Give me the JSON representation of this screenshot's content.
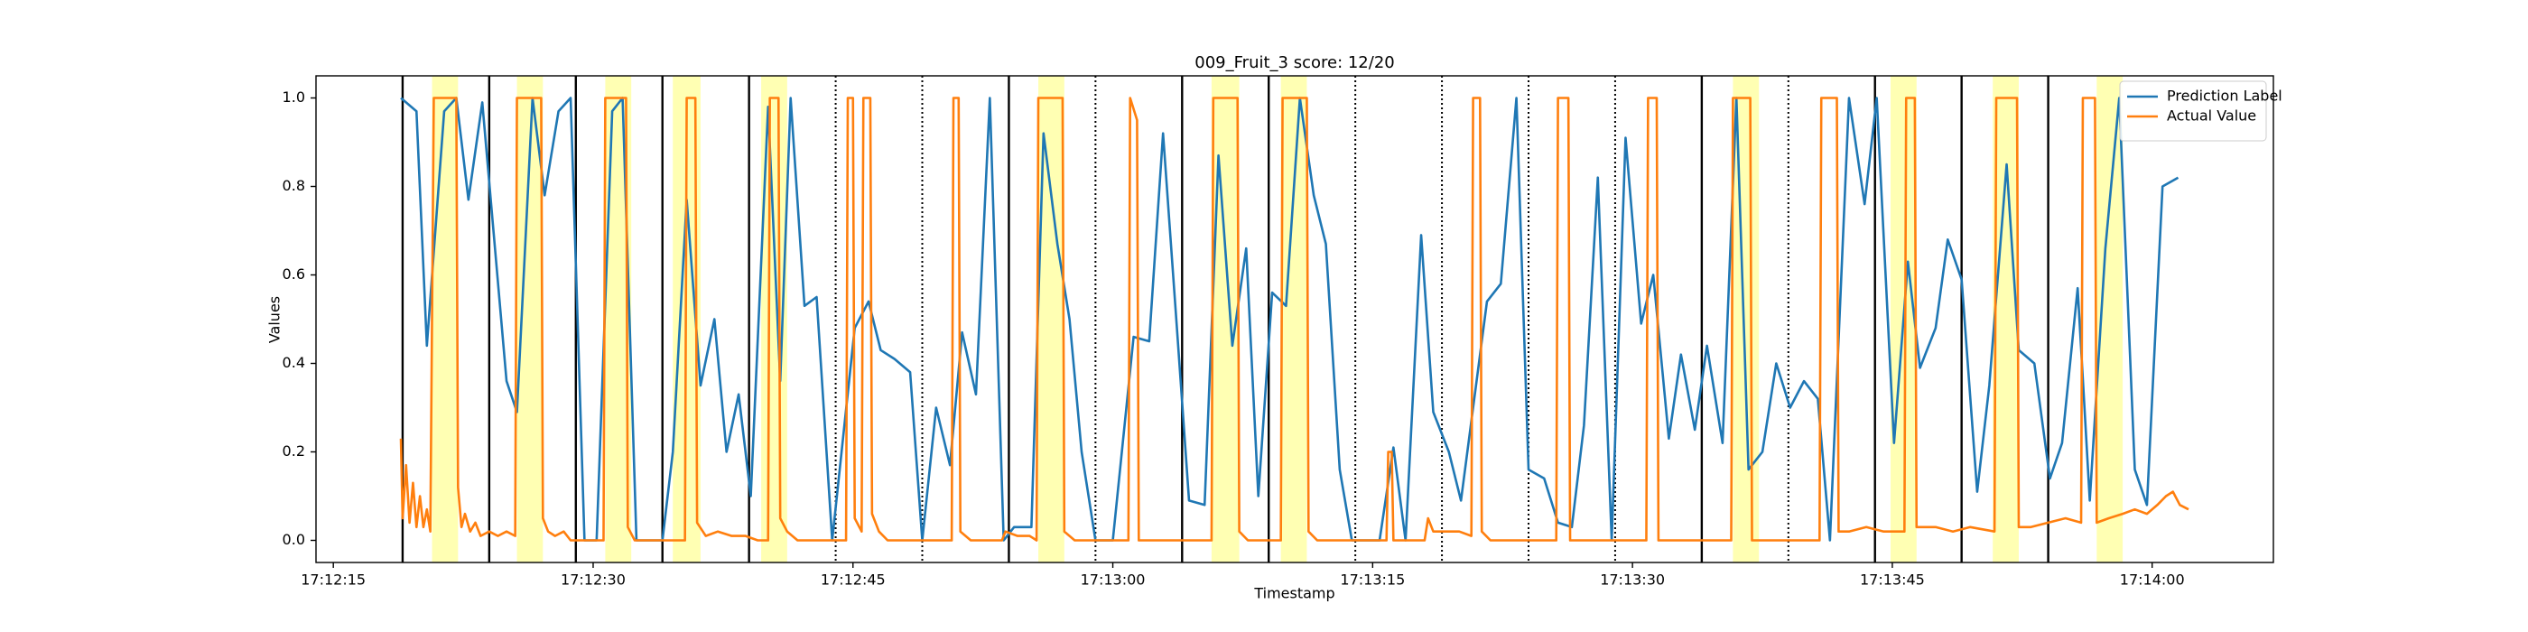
{
  "chart_data": {
    "type": "line",
    "title": "009_Fruit_3 score: 12/20",
    "xlabel": "Timestamp",
    "ylabel": "Values",
    "xlim": [
      61934,
      62047
    ],
    "ylim": [
      -0.05,
      1.05
    ],
    "xticks": [
      {
        "value": 61935,
        "label": "17:12:15"
      },
      {
        "value": 61950,
        "label": "17:12:30"
      },
      {
        "value": 61965,
        "label": "17:12:45"
      },
      {
        "value": 61980,
        "label": "17:13:00"
      },
      {
        "value": 61995,
        "label": "17:13:15"
      },
      {
        "value": 62010,
        "label": "17:13:30"
      },
      {
        "value": 62025,
        "label": "17:13:45"
      },
      {
        "value": 62040,
        "label": "17:14:00"
      }
    ],
    "yticks": [
      {
        "value": 0,
        "label": "0.0"
      },
      0.2,
      0.4,
      0.6,
      0.8,
      {
        "value": 1,
        "label": "1.0"
      }
    ],
    "legend": "upper right",
    "highlight_color": "#ffff99",
    "boundary_color": "#000000",
    "highlights": [
      [
        61940.7,
        61942.2
      ],
      [
        61945.6,
        61947.1
      ],
      [
        61950.7,
        61952.2
      ],
      [
        61954.6,
        61956.2
      ],
      [
        61959.7,
        61961.2
      ],
      [
        61975.7,
        61977.2
      ],
      [
        61985.7,
        61987.3
      ],
      [
        61989.7,
        61991.2
      ],
      [
        62015.8,
        62017.3
      ],
      [
        62024.9,
        62026.4
      ],
      [
        62030.8,
        62032.3
      ],
      [
        62036.8,
        62038.3
      ]
    ],
    "boundaries": [
      {
        "x": 61939,
        "correct": true
      },
      {
        "x": 61944,
        "correct": true
      },
      {
        "x": 61949,
        "correct": true
      },
      {
        "x": 61954,
        "correct": true
      },
      {
        "x": 61959,
        "correct": true
      },
      {
        "x": 61964,
        "correct": false
      },
      {
        "x": 61969,
        "correct": false
      },
      {
        "x": 61974,
        "correct": true
      },
      {
        "x": 61979,
        "correct": false
      },
      {
        "x": 61984,
        "correct": true
      },
      {
        "x": 61989,
        "correct": true
      },
      {
        "x": 61994,
        "correct": false
      },
      {
        "x": 61999,
        "correct": false
      },
      {
        "x": 62004,
        "correct": false
      },
      {
        "x": 62009,
        "correct": false
      },
      {
        "x": 62014,
        "correct": true
      },
      {
        "x": 62019,
        "correct": false
      },
      {
        "x": 62024,
        "correct": true
      },
      {
        "x": 62029,
        "correct": true
      },
      {
        "x": 62034,
        "correct": true
      }
    ],
    "series": [
      {
        "name": "Prediction Label",
        "color": "#1f77b4",
        "x": [
          61938.9,
          61939.8,
          61940.4,
          61941.4,
          61942.1,
          61942.8,
          61943.6,
          61945.0,
          61945.6,
          61946.5,
          61947.2,
          61948.0,
          61948.7,
          61949.5,
          61950.2,
          61951.1,
          61951.7,
          61952.5,
          61953.2,
          61954.0,
          61954.6,
          61955.4,
          61956.2,
          61957.0,
          61957.7,
          61958.4,
          61959.1,
          61960.1,
          61960.8,
          61961.4,
          61962.2,
          61962.9,
          61963.8,
          61965.1,
          61965.9,
          61966.6,
          61967.4,
          61968.3,
          61969.0,
          61969.8,
          61970.6,
          61971.3,
          61972.1,
          61972.9,
          61973.7,
          61974.3,
          61975.3,
          61976.0,
          61976.8,
          61977.5,
          61978.2,
          61979.0,
          61980.0,
          61981.2,
          61982.1,
          61982.9,
          61983.7,
          61984.4,
          61985.3,
          61986.1,
          61986.9,
          61987.7,
          61988.4,
          61989.2,
          61990.0,
          61990.8,
          61991.6,
          61992.3,
          61993.1,
          61993.8,
          61994.7,
          61995.4,
          61996.2,
          61996.9,
          61997.8,
          61998.5,
          61999.4,
          62000.1,
          62000.8,
          62001.6,
          62002.4,
          62003.3,
          62004.0,
          62004.9,
          62005.7,
          62006.5,
          62007.2,
          62008.0,
          62008.8,
          62009.6,
          62010.5,
          62011.2,
          62012.1,
          62012.8,
          62013.6,
          62014.3,
          62015.2,
          62016.0,
          62016.7,
          62017.5,
          62018.3,
          62019.1,
          62019.9,
          62020.7,
          62021.4,
          62022.5,
          62023.4,
          62024.1,
          62025.1,
          62025.9,
          62026.6,
          62027.5,
          62028.2,
          62029.0,
          62029.9,
          62030.6,
          62031.6,
          62032.3,
          62033.2,
          62034.1,
          62034.8,
          62035.7,
          62036.4,
          62037.3,
          62038.1,
          62039.0,
          62039.7,
          62040.6,
          62041.5
        ],
        "values": [
          1.0,
          0.97,
          0.44,
          0.97,
          1.0,
          0.77,
          0.99,
          0.36,
          0.29,
          1.0,
          0.78,
          0.97,
          1.0,
          0.0,
          0.0,
          0.97,
          1.0,
          0.0,
          0.0,
          0.0,
          0.2,
          0.77,
          0.35,
          0.5,
          0.2,
          0.33,
          0.1,
          0.98,
          0.36,
          1.0,
          0.53,
          0.55,
          0.0,
          0.48,
          0.54,
          0.43,
          0.41,
          0.38,
          0.0,
          0.3,
          0.17,
          0.47,
          0.33,
          1.0,
          0.0,
          0.03,
          0.03,
          0.92,
          0.67,
          0.5,
          0.2,
          0.0,
          0.0,
          0.46,
          0.45,
          0.92,
          0.48,
          0.09,
          0.08,
          0.87,
          0.44,
          0.66,
          0.1,
          0.56,
          0.53,
          1.0,
          0.78,
          0.67,
          0.16,
          0.0,
          0.0,
          0.0,
          0.21,
          0.0,
          0.69,
          0.29,
          0.2,
          0.09,
          0.3,
          0.54,
          0.58,
          1.0,
          0.16,
          0.14,
          0.04,
          0.03,
          0.26,
          0.82,
          0.0,
          0.91,
          0.49,
          0.6,
          0.23,
          0.42,
          0.25,
          0.44,
          0.22,
          1.0,
          0.16,
          0.2,
          0.4,
          0.3,
          0.36,
          0.32,
          0.0,
          1.0,
          0.76,
          1.0,
          0.22,
          0.63,
          0.39,
          0.48,
          0.68,
          0.59,
          0.11,
          0.35,
          0.85,
          0.43,
          0.4,
          0.14,
          0.22,
          0.57,
          0.09,
          0.66,
          1.0,
          0.16,
          0.08,
          0.8,
          0.82
        ]
      },
      {
        "name": "Actual Value",
        "color": "#ff7f0e",
        "x": [
          61938.9,
          61939.0,
          61939.2,
          61939.4,
          61939.6,
          61939.8,
          61940.0,
          61940.2,
          61940.4,
          61940.6,
          61940.8,
          61942.1,
          61942.2,
          61942.4,
          61942.6,
          61942.9,
          61943.2,
          61943.5,
          61944.0,
          61944.5,
          61945.0,
          61945.5,
          61945.6,
          61947.0,
          61947.1,
          61947.4,
          61947.8,
          61948.3,
          61948.7,
          61950.6,
          61950.7,
          61951.9,
          61952.0,
          61952.4,
          61955.3,
          61955.4,
          61955.9,
          61956.0,
          61956.5,
          61957.2,
          61958.0,
          61958.8,
          61959.5,
          61960.1,
          61960.2,
          61960.7,
          61960.8,
          61961.2,
          61961.8,
          61964.6,
          61964.7,
          61965.0,
          61965.1,
          61965.5,
          61965.6,
          61966.0,
          61966.1,
          61966.5,
          61967.0,
          61970.7,
          61970.8,
          61971.1,
          61971.2,
          61971.8,
          61973.6,
          61973.8,
          61974.5,
          61975.2,
          61975.6,
          61975.7,
          61977.1,
          61977.2,
          61977.8,
          61980.9,
          61981.0,
          61981.4,
          61981.5,
          61985.7,
          61985.8,
          61987.2,
          61987.3,
          61987.8,
          61989.7,
          61989.8,
          61991.2,
          61991.3,
          61991.8,
          61995.8,
          61995.9,
          61996.1,
          61996.2,
          61998.0,
          61998.2,
          61998.5,
          61999.0,
          62000.0,
          62000.7,
          62000.8,
          62001.2,
          62001.3,
          62001.8,
          62005.6,
          62005.7,
          62006.3,
          62006.4,
          62010.8,
          62010.9,
          62011.4,
          62011.5,
          62015.7,
          62015.8,
          62016.8,
          62016.9,
          62020.8,
          62020.9,
          62021.8,
          62021.9,
          62022.5,
          62023.5,
          62024.5,
          62025.7,
          62025.8,
          62026.3,
          62026.4,
          62027.5,
          62028.5,
          62029.5,
          62030.9,
          62031.0,
          62032.2,
          62032.3,
          62033.0,
          62034.0,
          62035.0,
          62035.9,
          62036.0,
          62036.7,
          62036.8,
          62037.5,
          62038.3,
          62039.0,
          62039.7,
          62040.3,
          62040.8,
          62041.2,
          62041.6,
          62042.1
        ],
        "values": [
          0.23,
          0.05,
          0.17,
          0.04,
          0.13,
          0.03,
          0.1,
          0.03,
          0.07,
          0.02,
          1,
          1,
          0.12,
          0.03,
          0.06,
          0.02,
          0.04,
          0.01,
          0.02,
          0.01,
          0.02,
          0.01,
          1,
          1,
          0.05,
          0.02,
          0.01,
          0.02,
          0.0,
          0.0,
          1,
          1,
          0.03,
          0.0,
          0.0,
          1,
          1,
          0.04,
          0.01,
          0.02,
          0.01,
          0.01,
          0.0,
          0.0,
          1,
          1,
          0.05,
          0.02,
          0.0,
          0.0,
          1,
          1,
          0.05,
          0.02,
          1,
          1,
          0.06,
          0.02,
          0.0,
          0.0,
          1,
          1,
          0.02,
          0.0,
          0.0,
          0.02,
          0.01,
          0.01,
          0.0,
          1,
          1,
          0.02,
          0.0,
          0.0,
          1,
          0.95,
          0.0,
          0.0,
          1,
          1,
          0.02,
          0.0,
          0.0,
          1,
          1,
          0.02,
          0.0,
          0.0,
          0.2,
          0.2,
          0.0,
          0.0,
          0.05,
          0.02,
          0.02,
          0.02,
          0.01,
          1,
          1,
          0.02,
          0.0,
          0.0,
          1,
          1,
          0.0,
          0.0,
          1,
          1,
          0.0,
          0.0,
          1,
          1,
          0.0,
          0.0,
          1,
          1,
          0.02,
          0.02,
          0.03,
          0.02,
          0.02,
          1,
          1,
          0.03,
          0.03,
          0.02,
          0.03,
          0.02,
          1,
          1,
          0.03,
          0.03,
          0.04,
          0.05,
          0.04,
          1,
          1,
          0.04,
          0.05,
          0.06,
          0.07,
          0.06,
          0.08,
          0.1,
          0.11,
          0.08,
          0.07
        ]
      }
    ]
  }
}
